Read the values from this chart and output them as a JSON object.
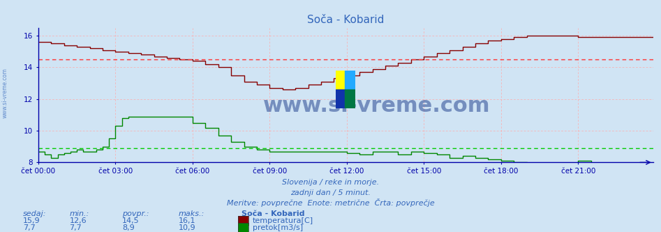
{
  "title": "Soča - Kobarid",
  "bg_color": "#d0e4f4",
  "plot_bg_color": "#d0e4f4",
  "grid_color": "#ffaaaa",
  "xlabel_color": "#3366bb",
  "ylabel_color": "#3366bb",
  "title_color": "#3366bb",
  "text_color": "#3366bb",
  "temp_color": "#880000",
  "flow_color": "#008800",
  "avg_temp_color": "#ff3333",
  "avg_flow_color": "#00cc00",
  "border_color": "#0000aa",
  "watermark_text_color": "#1a3a8a",
  "ylim": [
    8,
    16.5
  ],
  "yticks": [
    8,
    10,
    12,
    14,
    16
  ],
  "xlim": [
    0,
    287
  ],
  "xtick_labels": [
    "čet 00:00",
    "čet 03:00",
    "čet 06:00",
    "čet 09:00",
    "čet 12:00",
    "čet 15:00",
    "čet 18:00",
    "čet 21:00"
  ],
  "xtick_positions": [
    0,
    36,
    72,
    108,
    144,
    180,
    216,
    252
  ],
  "avg_temp": 14.5,
  "avg_flow": 8.9,
  "subtitle1": "Slovenija / reke in morje.",
  "subtitle2": "zadnji dan / 5 minut.",
  "subtitle3": "Meritve: povprečne  Enote: metrične  Črta: povprečje",
  "legend_title": "Soča - Kobarid",
  "legend_labels": [
    "temperatura[C]",
    "pretok[m3/s]"
  ],
  "stat_headers": [
    "sedaj:",
    "min.:",
    "povpr.:",
    "maks.:"
  ],
  "stat_temp": [
    "15,9",
    "12,6",
    "14,5",
    "16,1"
  ],
  "stat_flow": [
    "7,7",
    "7,7",
    "8,9",
    "10,9"
  ],
  "logo_colors": [
    "#ffff00",
    "#22aaff",
    "#1133aa",
    "#007744"
  ]
}
